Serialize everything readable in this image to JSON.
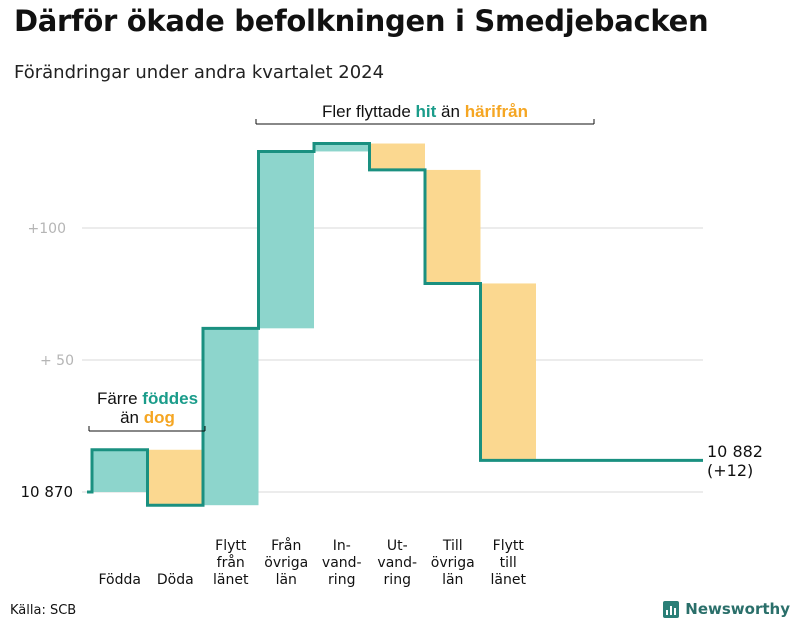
{
  "header": {
    "title": "Därför ökade befolkningen i Smedjebacken",
    "subtitle": "Förändringar under andra kvartalet 2024"
  },
  "chart_data": {
    "type": "waterfall",
    "baseline": 10870,
    "baseline_label": "10  870",
    "yticks": [
      {
        "value": 100,
        "label": "+100"
      },
      {
        "value": 50,
        "label": "+  50"
      }
    ],
    "ylim": [
      -6,
      140
    ],
    "steps": [
      {
        "label_lines": [
          "Födda"
        ],
        "value": 16,
        "kind": "in"
      },
      {
        "label_lines": [
          "Döda"
        ],
        "value": -21,
        "kind": "out"
      },
      {
        "label_lines": [
          "Flytt",
          "från",
          "länet"
        ],
        "value": 67,
        "kind": "in"
      },
      {
        "label_lines": [
          "Från",
          "övriga",
          "län"
        ],
        "value": 67,
        "kind": "in"
      },
      {
        "label_lines": [
          "In-",
          "vand-",
          "ring"
        ],
        "value": 3,
        "kind": "in"
      },
      {
        "label_lines": [
          "Ut-",
          "vand-",
          "ring"
        ],
        "value": -10,
        "kind": "out"
      },
      {
        "label_lines": [
          "Till",
          "övriga",
          "län"
        ],
        "value": -43,
        "kind": "out"
      },
      {
        "label_lines": [
          "Flytt",
          "till",
          "länet"
        ],
        "value": -67,
        "kind": "out"
      }
    ],
    "end_label": {
      "value": "10 882",
      "change": "(+12)"
    },
    "annotations": {
      "births": {
        "line1": "Färre ",
        "line1_highlight": "föddes",
        "line2": "än ",
        "line2_highlight": "dog"
      },
      "moves": {
        "prefix": "Fler flyttade ",
        "in_word": "hit",
        "middle": " än ",
        "out_word": "härifrån"
      }
    },
    "colors": {
      "in": "#8dd5cc",
      "out": "#fbd890",
      "line": "#1a9080",
      "grid": "#d9d9d9",
      "teal_text": "#1a9c8a",
      "orange_text": "#f5a623"
    }
  },
  "footer": {
    "source": "Källa: SCB",
    "logo_text": "Newsworthy",
    "logo_icon": "bar-chart-icon"
  }
}
